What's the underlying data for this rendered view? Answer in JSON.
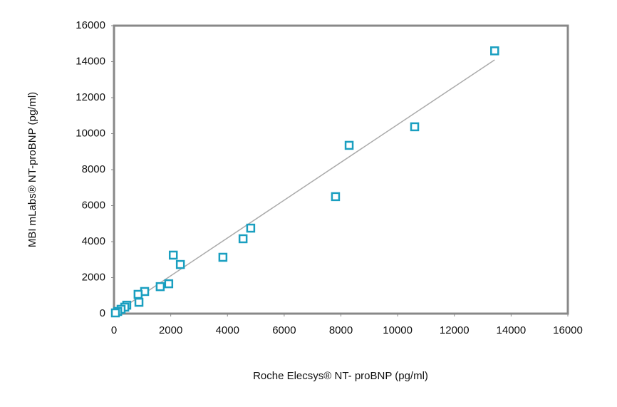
{
  "chart_data": {
    "type": "scatter",
    "x_label": "Roche Elecsys® NT- proBNP (pg/ml)",
    "y_label": "MBI mLabs® NT-proBNP (pg/ml)",
    "xlim": [
      0,
      16000
    ],
    "ylim": [
      0,
      16000
    ],
    "xticks": [
      0,
      2000,
      4000,
      6000,
      8000,
      10000,
      12000,
      14000,
      16000
    ],
    "yticks": [
      0,
      2000,
      4000,
      6000,
      8000,
      10000,
      12000,
      14000,
      16000
    ],
    "series": [
      {
        "color": "#1a9fc0",
        "x": [
          13420,
          10600,
          8290,
          7810,
          4820,
          4550,
          3840,
          2090,
          2340,
          1930,
          1630,
          1080,
          850,
          880,
          450,
          380,
          250,
          130,
          50
        ],
        "values": [
          14600,
          10380,
          9350,
          6500,
          4750,
          4160,
          3130,
          3250,
          2730,
          1660,
          1500,
          1230,
          1070,
          630,
          470,
          360,
          240,
          120,
          40
        ]
      }
    ],
    "trendline": {
      "color": "#aaaaaa",
      "x": [
        0,
        13420
      ],
      "values": [
        0,
        14100
      ]
    }
  }
}
